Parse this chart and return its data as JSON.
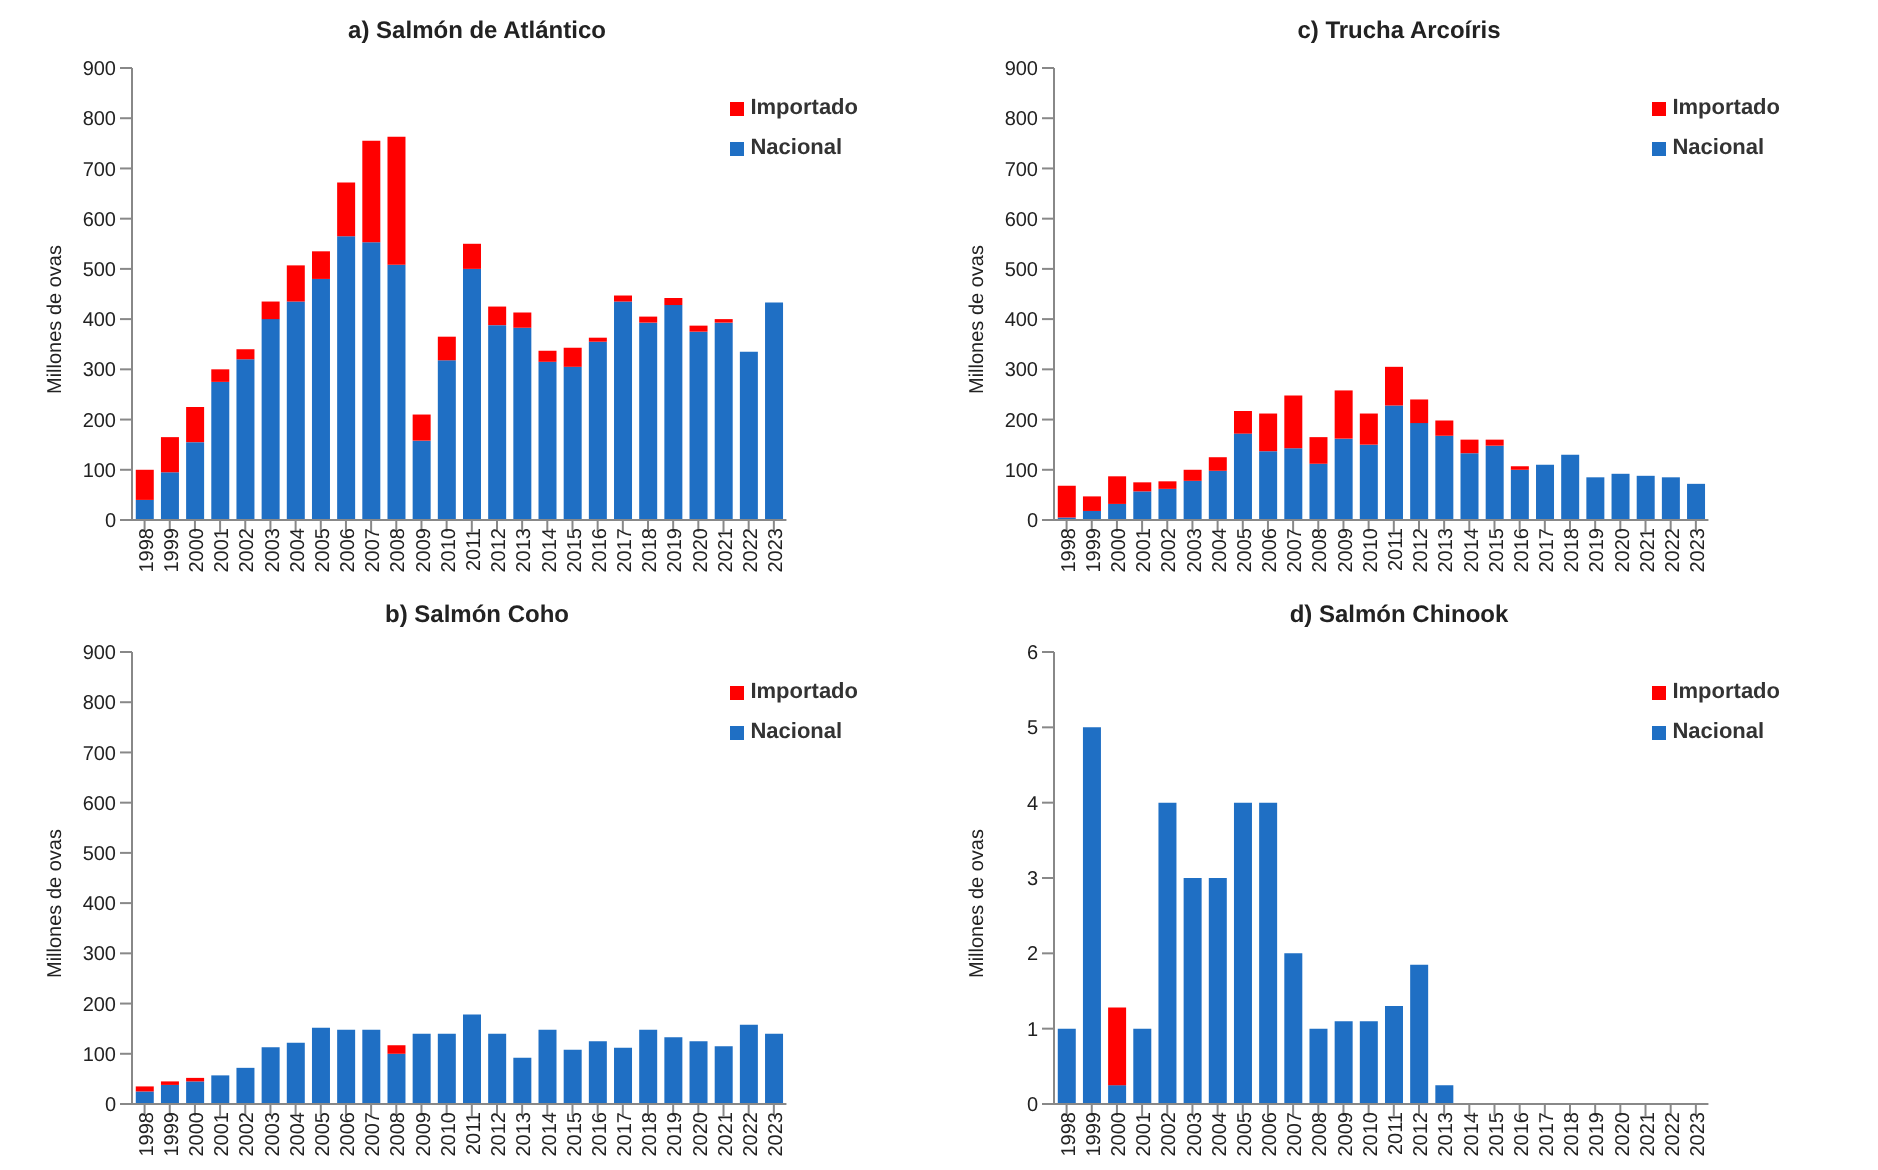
{
  "chart_data": [
    {
      "type": "bar",
      "title": "a) Salmón de Atlántico",
      "ylabel": "Millones de ovas",
      "stacked": true,
      "legend": "top right",
      "grid": false,
      "categories": [
        "1998",
        "1999",
        "2000",
        "2001",
        "2002",
        "2003",
        "2004",
        "2005",
        "2006",
        "2007",
        "2008",
        "2009",
        "2010",
        "2011",
        "2012",
        "2013",
        "2014",
        "2015",
        "2016",
        "2017",
        "2018",
        "2019",
        "2020",
        "2021",
        "2022",
        "2023"
      ],
      "ylim": [
        0,
        900
      ],
      "yticks": [
        0,
        100,
        200,
        300,
        400,
        500,
        600,
        700,
        800,
        900
      ],
      "series": [
        {
          "name": "Nacional",
          "color": "#1f6fc4",
          "values": [
            40,
            95,
            155,
            275,
            320,
            400,
            435,
            480,
            565,
            553,
            508,
            158,
            318,
            500,
            388,
            383,
            315,
            305,
            355,
            435,
            393,
            428,
            375,
            393,
            335,
            433
          ]
        },
        {
          "name": "Importado",
          "color": "#ff0000",
          "values": [
            60,
            70,
            70,
            25,
            20,
            35,
            72,
            55,
            107,
            202,
            255,
            52,
            47,
            50,
            37,
            30,
            22,
            38,
            8,
            12,
            12,
            14,
            12,
            7,
            0,
            0
          ]
        }
      ]
    },
    {
      "type": "bar",
      "title": "c) Trucha Arcoíris",
      "ylabel": "Millones de ovas",
      "stacked": true,
      "legend": "top right",
      "grid": false,
      "categories": [
        "1998",
        "1999",
        "2000",
        "2001",
        "2002",
        "2003",
        "2004",
        "2005",
        "2006",
        "2007",
        "2008",
        "2009",
        "2010",
        "2011",
        "2012",
        "2013",
        "2014",
        "2015",
        "2016",
        "2017",
        "2018",
        "2019",
        "2020",
        "2021",
        "2022",
        "2023"
      ],
      "ylim": [
        0,
        900
      ],
      "yticks": [
        0,
        100,
        200,
        300,
        400,
        500,
        600,
        700,
        800,
        900
      ],
      "series": [
        {
          "name": "Nacional",
          "color": "#1f6fc4",
          "values": [
            5,
            18,
            32,
            57,
            62,
            78,
            98,
            172,
            137,
            143,
            112,
            162,
            150,
            228,
            193,
            168,
            133,
            148,
            100,
            110,
            130,
            85,
            92,
            88,
            85,
            72
          ]
        },
        {
          "name": "Importado",
          "color": "#ff0000",
          "values": [
            63,
            29,
            55,
            18,
            15,
            22,
            27,
            45,
            75,
            105,
            53,
            96,
            62,
            77,
            47,
            30,
            27,
            12,
            7,
            0,
            0,
            0,
            0,
            0,
            0,
            0
          ]
        }
      ]
    },
    {
      "type": "bar",
      "title": "b) Salmón Coho",
      "ylabel": "Millones de ovas",
      "stacked": true,
      "legend": "top right",
      "grid": false,
      "categories": [
        "1998",
        "1999",
        "2000",
        "2001",
        "2002",
        "2003",
        "2004",
        "2005",
        "2006",
        "2007",
        "2008",
        "2009",
        "2010",
        "2011",
        "2012",
        "2013",
        "2014",
        "2015",
        "2016",
        "2017",
        "2018",
        "2019",
        "2020",
        "2021",
        "2022",
        "2023"
      ],
      "ylim": [
        0,
        900
      ],
      "yticks": [
        0,
        100,
        200,
        300,
        400,
        500,
        600,
        700,
        800,
        900
      ],
      "series": [
        {
          "name": "Nacional",
          "color": "#1f6fc4",
          "values": [
            25,
            38,
            45,
            57,
            72,
            113,
            122,
            152,
            148,
            148,
            100,
            140,
            140,
            178,
            140,
            92,
            148,
            108,
            125,
            112,
            148,
            133,
            125,
            115,
            158,
            140
          ]
        },
        {
          "name": "Importado",
          "color": "#ff0000",
          "values": [
            10,
            7,
            7,
            0,
            0,
            0,
            0,
            0,
            0,
            0,
            17,
            0,
            0,
            0,
            0,
            0,
            0,
            0,
            0,
            0,
            0,
            0,
            0,
            0,
            0,
            0
          ]
        }
      ]
    },
    {
      "type": "bar",
      "title": "d) Salmón Chinook",
      "ylabel": "Millones de ovas",
      "stacked": true,
      "legend": "top right",
      "grid": false,
      "categories": [
        "1998",
        "1999",
        "2000",
        "2001",
        "2002",
        "2003",
        "2004",
        "2005",
        "2006",
        "2007",
        "2008",
        "2009",
        "2010",
        "2011",
        "2012",
        "2013",
        "2014",
        "2015",
        "2016",
        "2017",
        "2018",
        "2019",
        "2020",
        "2021",
        "2022",
        "2023"
      ],
      "ylim": [
        0,
        6
      ],
      "yticks": [
        0,
        1,
        2,
        3,
        4,
        5,
        6
      ],
      "series": [
        {
          "name": "Nacional",
          "color": "#1f6fc4",
          "values": [
            1,
            5,
            0.25,
            1,
            4,
            3,
            3,
            4,
            4,
            2,
            1,
            1.1,
            1.1,
            1.3,
            1.85,
            0.25,
            0,
            0,
            0,
            0,
            0,
            0,
            0,
            0,
            0,
            0
          ]
        },
        {
          "name": "Importado",
          "color": "#ff0000",
          "values": [
            0,
            0,
            1.03,
            0,
            0,
            0,
            0,
            0,
            0,
            0,
            0,
            0,
            0,
            0,
            0,
            0,
            0,
            0,
            0,
            0,
            0,
            0,
            0,
            0,
            0,
            0
          ]
        }
      ]
    }
  ]
}
